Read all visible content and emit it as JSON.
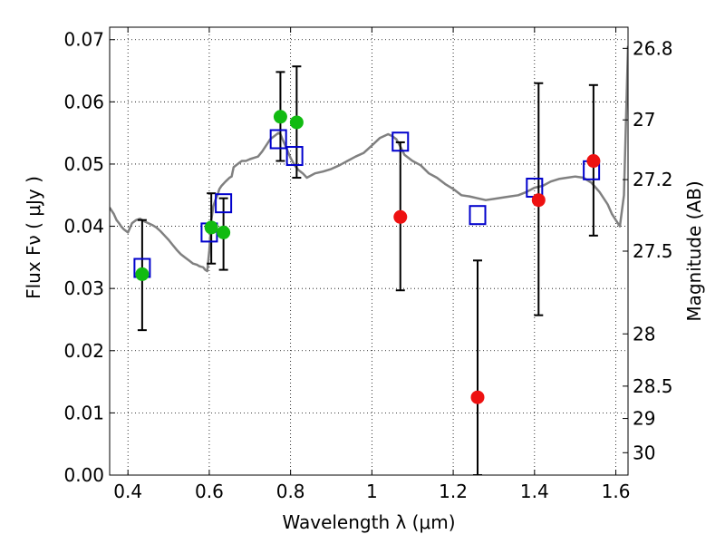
{
  "chart_data": {
    "type": "scatter",
    "xlabel": "Wavelength  λ (μm)",
    "ylabel": "Flux  Fν  ( μJy )",
    "y2label": "Magnitude (AB)",
    "xlim": [
      0.355,
      1.63
    ],
    "ylim": [
      0.0,
      0.072
    ],
    "grid": true,
    "x_ticks": [
      0.4,
      0.6,
      0.8,
      1.0,
      1.2,
      1.4,
      1.6
    ],
    "x_tick_labels": [
      "0.4",
      "0.6",
      "0.8",
      "1",
      "1.2",
      "1.4",
      "1.6"
    ],
    "y_ticks": [
      0.0,
      0.01,
      0.02,
      0.03,
      0.04,
      0.05,
      0.06,
      0.07
    ],
    "y_tick_labels": [
      "0.00",
      "0.01",
      "0.02",
      "0.03",
      "0.04",
      "0.05",
      "0.06",
      "0.07"
    ],
    "y2_ticks": [
      {
        "label": "26.8",
        "flux": 0.0686
      },
      {
        "label": "27",
        "flux": 0.0571
      },
      {
        "label": "27.2",
        "flux": 0.0475
      },
      {
        "label": "27.5",
        "flux": 0.036
      },
      {
        "label": "28",
        "flux": 0.0227
      },
      {
        "label": "28.5",
        "flux": 0.0143
      },
      {
        "label": "29",
        "flux": 0.0091
      },
      {
        "label": "30",
        "flux": 0.0036
      }
    ],
    "colors": {
      "model_sed": "#808080",
      "green_points": "#11bb11",
      "red_points": "#ee1111",
      "model_boxes": "#0000cc",
      "errorbars": "#000000"
    },
    "model_sed_line": {
      "x": [
        0.355,
        0.365,
        0.372,
        0.378,
        0.383,
        0.39,
        0.4,
        0.41,
        0.42,
        0.43,
        0.44,
        0.45,
        0.46,
        0.47,
        0.48,
        0.49,
        0.5,
        0.51,
        0.52,
        0.53,
        0.54,
        0.55,
        0.56,
        0.57,
        0.575,
        0.58,
        0.585,
        0.59,
        0.595,
        0.6,
        0.605,
        0.61,
        0.615,
        0.62,
        0.625,
        0.63,
        0.64,
        0.65,
        0.655,
        0.66,
        0.67,
        0.68,
        0.69,
        0.7,
        0.71,
        0.72,
        0.73,
        0.74,
        0.75,
        0.76,
        0.77,
        0.775,
        0.78,
        0.79,
        0.8,
        0.81,
        0.82,
        0.83,
        0.84,
        0.86,
        0.88,
        0.9,
        0.92,
        0.94,
        0.96,
        0.98,
        1.0,
        1.02,
        1.04,
        1.05,
        1.06,
        1.07,
        1.08,
        1.1,
        1.12,
        1.14,
        1.16,
        1.18,
        1.2,
        1.22,
        1.24,
        1.26,
        1.28,
        1.3,
        1.32,
        1.34,
        1.36,
        1.38,
        1.4,
        1.42,
        1.44,
        1.46,
        1.48,
        1.5,
        1.52,
        1.54,
        1.56,
        1.58,
        1.59,
        1.6,
        1.61,
        1.62,
        1.63
      ],
      "y": [
        0.043,
        0.042,
        0.041,
        0.0405,
        0.04,
        0.0395,
        0.039,
        0.0405,
        0.041,
        0.0412,
        0.0408,
        0.0405,
        0.0402,
        0.0398,
        0.0392,
        0.0385,
        0.0378,
        0.037,
        0.0362,
        0.0355,
        0.035,
        0.0345,
        0.034,
        0.0338,
        0.0336,
        0.0335,
        0.0334,
        0.033,
        0.0328,
        0.036,
        0.041,
        0.0432,
        0.0442,
        0.045,
        0.046,
        0.0465,
        0.0472,
        0.0478,
        0.048,
        0.0495,
        0.05,
        0.0505,
        0.0505,
        0.0508,
        0.051,
        0.0512,
        0.052,
        0.053,
        0.054,
        0.0545,
        0.055,
        0.0548,
        0.054,
        0.0525,
        0.051,
        0.0498,
        0.049,
        0.0485,
        0.0478,
        0.0485,
        0.0488,
        0.0492,
        0.0498,
        0.0505,
        0.0512,
        0.0518,
        0.053,
        0.0542,
        0.0548,
        0.0545,
        0.054,
        0.0528,
        0.0515,
        0.0505,
        0.0498,
        0.0485,
        0.0478,
        0.0468,
        0.046,
        0.045,
        0.0448,
        0.0445,
        0.0442,
        0.0444,
        0.0446,
        0.0448,
        0.045,
        0.0455,
        0.0462,
        0.0465,
        0.0472,
        0.0476,
        0.0478,
        0.048,
        0.0478,
        0.047,
        0.0455,
        0.0435,
        0.042,
        0.041,
        0.04,
        0.045,
        0.069
      ]
    },
    "green_points": {
      "x": [
        0.435,
        0.605,
        0.635,
        0.775,
        0.815
      ],
      "y": [
        0.0323,
        0.0398,
        0.039,
        0.0576,
        0.0567
      ]
    },
    "red_points": {
      "x": [
        1.07,
        1.26,
        1.41,
        1.545
      ],
      "y": [
        0.0415,
        0.0125,
        0.0442,
        0.0505
      ]
    },
    "model_boxes": {
      "x": [
        0.435,
        0.6,
        0.635,
        0.77,
        0.81,
        1.07,
        1.26,
        1.4,
        1.54
      ],
      "y": [
        0.0333,
        0.039,
        0.0437,
        0.054,
        0.0513,
        0.0536,
        0.0418,
        0.0462,
        0.049
      ]
    },
    "errorbars": [
      {
        "x": 0.435,
        "low": 0.0233,
        "high": 0.041
      },
      {
        "x": 0.605,
        "low": 0.034,
        "high": 0.0453
      },
      {
        "x": 0.635,
        "low": 0.033,
        "high": 0.0445
      },
      {
        "x": 0.775,
        "low": 0.0505,
        "high": 0.0648
      },
      {
        "x": 0.815,
        "low": 0.0478,
        "high": 0.0657
      },
      {
        "x": 1.07,
        "low": 0.0297,
        "high": 0.0535
      },
      {
        "x": 1.26,
        "low": 0.0,
        "high": 0.0345
      },
      {
        "x": 1.41,
        "low": 0.0257,
        "high": 0.063
      },
      {
        "x": 1.545,
        "low": 0.0385,
        "high": 0.0627
      }
    ]
  }
}
